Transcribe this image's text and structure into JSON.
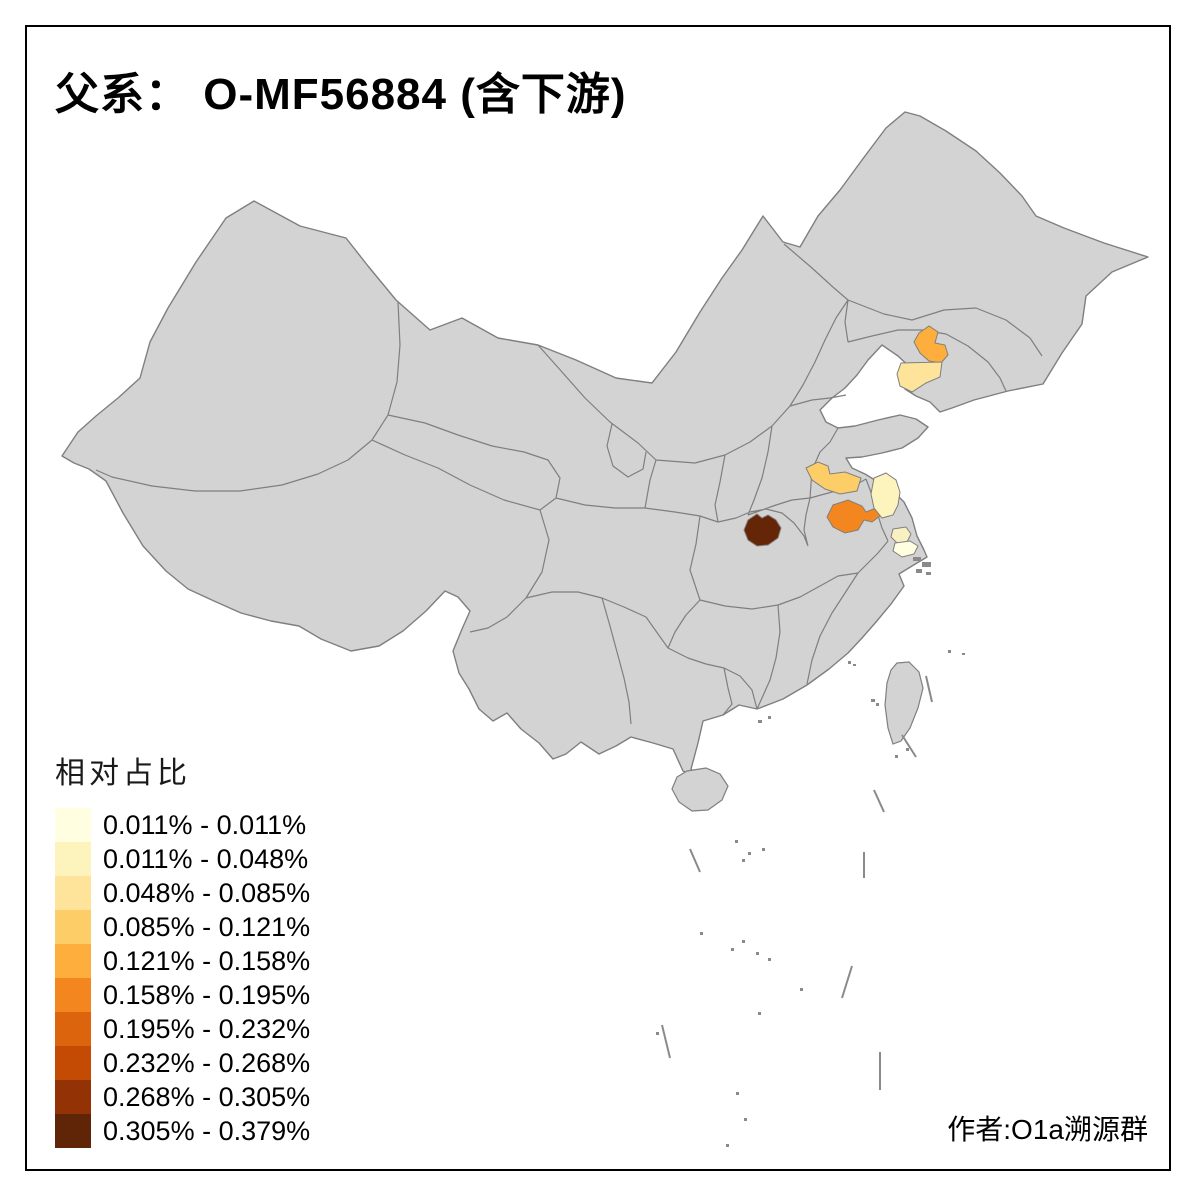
{
  "title": "父系： O-MF56884 (含下游)",
  "attribution": "作者:O1a溯源群",
  "legend": {
    "title": "相对占比",
    "classes": [
      {
        "label": "0.011% - 0.011%",
        "color": "#FFFEE0"
      },
      {
        "label": "0.011% - 0.048%",
        "color": "#FCF4BC"
      },
      {
        "label": "0.048% - 0.085%",
        "color": "#FDE49A"
      },
      {
        "label": "0.085% - 0.121%",
        "color": "#FDCD68"
      },
      {
        "label": "0.121% - 0.158%",
        "color": "#FDAE3C"
      },
      {
        "label": "0.158% - 0.195%",
        "color": "#F3861E"
      },
      {
        "label": "0.195% - 0.232%",
        "color": "#DC640D"
      },
      {
        "label": "0.232% - 0.268%",
        "color": "#C44B03"
      },
      {
        "label": "0.268% - 0.305%",
        "color": "#933305"
      },
      {
        "label": "0.305% - 0.379%",
        "color": "#602406"
      }
    ]
  },
  "map": {
    "base_fill": "#D3D3D3",
    "border_color": "#7F7F7F",
    "island_mark_color": "#8A8A8A",
    "background": "#FFFFFF",
    "regions": [
      {
        "name": "liaoning-central",
        "area": "辽宁中部",
        "class_index": 4,
        "color": "#FDAE3C"
      },
      {
        "name": "liaoning-south",
        "area": "辽东半岛",
        "class_index": 2,
        "color": "#FDE49A"
      },
      {
        "name": "huaibei",
        "area": "苏皖北部",
        "class_index": 3,
        "color": "#FDCD68"
      },
      {
        "name": "hefei",
        "area": "皖中",
        "class_index": 5,
        "color": "#F3861E"
      },
      {
        "name": "nw-hubei",
        "area": "鄂西北",
        "class_index": 9,
        "color": "#652507"
      },
      {
        "name": "central-jiangsu",
        "area": "苏中",
        "class_index": 1,
        "color": "#FCF4BC"
      },
      {
        "name": "south-jiangsu",
        "area": "苏南",
        "class_index": 1,
        "color": "#F8F0C2"
      },
      {
        "name": "shanghai-area",
        "area": "沪苏沿海",
        "class_index": 0,
        "color": "#FFFEE0"
      }
    ]
  }
}
